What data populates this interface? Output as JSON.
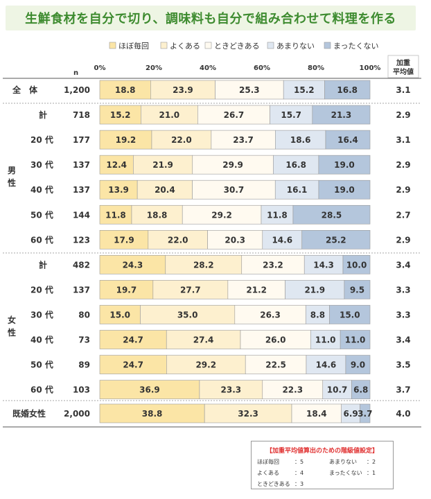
{
  "title": "生鮮食材を自分で切り、調味料も自分で組み合わせて料理を作る",
  "chart_data": {
    "type": "bar",
    "stacked": true,
    "orientation": "horizontal",
    "percent": true,
    "x_ticks": [
      "0%",
      "20%",
      "40%",
      "60%",
      "80%",
      "100%"
    ],
    "n_header": "n",
    "avg_header": [
      "加重",
      "平均値"
    ],
    "legend": [
      {
        "name": "ほぼ毎回",
        "color": "#fbe5a6"
      },
      {
        "name": "よくある",
        "color": "#fdf0cf"
      },
      {
        "name": "ときどきある",
        "color": "#fffaf0"
      },
      {
        "name": "あまりない",
        "color": "#dfe7f1"
      },
      {
        "name": "まったくない",
        "color": "#b4c6dc"
      }
    ],
    "group_labels": {
      "male": "男性",
      "female": "女性"
    },
    "rows": [
      {
        "label": "全　体",
        "n": "1,200",
        "values": [
          18.8,
          23.9,
          25.3,
          15.2,
          16.8
        ],
        "avg": "3.1"
      },
      {
        "label": "計",
        "n": "718",
        "values": [
          15.2,
          21.0,
          26.7,
          15.7,
          21.3
        ],
        "avg": "2.9"
      },
      {
        "label": "20 代",
        "n": "177",
        "values": [
          19.2,
          22.0,
          23.7,
          18.6,
          16.4
        ],
        "avg": "3.1"
      },
      {
        "label": "30 代",
        "n": "137",
        "values": [
          12.4,
          21.9,
          29.9,
          16.8,
          19.0
        ],
        "avg": "2.9"
      },
      {
        "label": "40 代",
        "n": "137",
        "values": [
          13.9,
          20.4,
          30.7,
          16.1,
          19.0
        ],
        "avg": "2.9"
      },
      {
        "label": "50 代",
        "n": "144",
        "values": [
          11.8,
          18.8,
          29.2,
          11.8,
          28.5
        ],
        "avg": "2.7"
      },
      {
        "label": "60 代",
        "n": "123",
        "values": [
          17.9,
          22.0,
          20.3,
          14.6,
          25.2
        ],
        "avg": "2.9"
      },
      {
        "label": "計",
        "n": "482",
        "values": [
          24.3,
          28.2,
          23.2,
          14.3,
          10.0
        ],
        "avg": "3.4"
      },
      {
        "label": "20 代",
        "n": "137",
        "values": [
          19.7,
          27.7,
          21.2,
          21.9,
          9.5
        ],
        "avg": "3.3"
      },
      {
        "label": "30 代",
        "n": "80",
        "values": [
          15.0,
          35.0,
          26.3,
          8.8,
          15.0
        ],
        "avg": "3.3"
      },
      {
        "label": "40 代",
        "n": "73",
        "values": [
          24.7,
          27.4,
          26.0,
          11.0,
          11.0
        ],
        "avg": "3.4"
      },
      {
        "label": "50 代",
        "n": "89",
        "values": [
          24.7,
          29.2,
          22.5,
          14.6,
          9.0
        ],
        "avg": "3.5"
      },
      {
        "label": "60 代",
        "n": "103",
        "values": [
          36.9,
          23.3,
          22.3,
          10.7,
          6.8
        ],
        "avg": "3.7"
      },
      {
        "label": "既婚女性",
        "n": "2,000",
        "values": [
          38.8,
          32.3,
          18.4,
          6.9,
          3.7
        ],
        "avg": "4.0"
      }
    ]
  },
  "note": {
    "title": "【加重平均値算出のための階級値設定】",
    "items": [
      {
        "key": "ほぼ毎回",
        "value": "：5"
      },
      {
        "key": "よくある",
        "value": "：4"
      },
      {
        "key": "ときどきある",
        "value": "：3"
      },
      {
        "key": "あまりない",
        "value": "：2"
      },
      {
        "key": "まったくない",
        "value": "：1"
      }
    ]
  }
}
